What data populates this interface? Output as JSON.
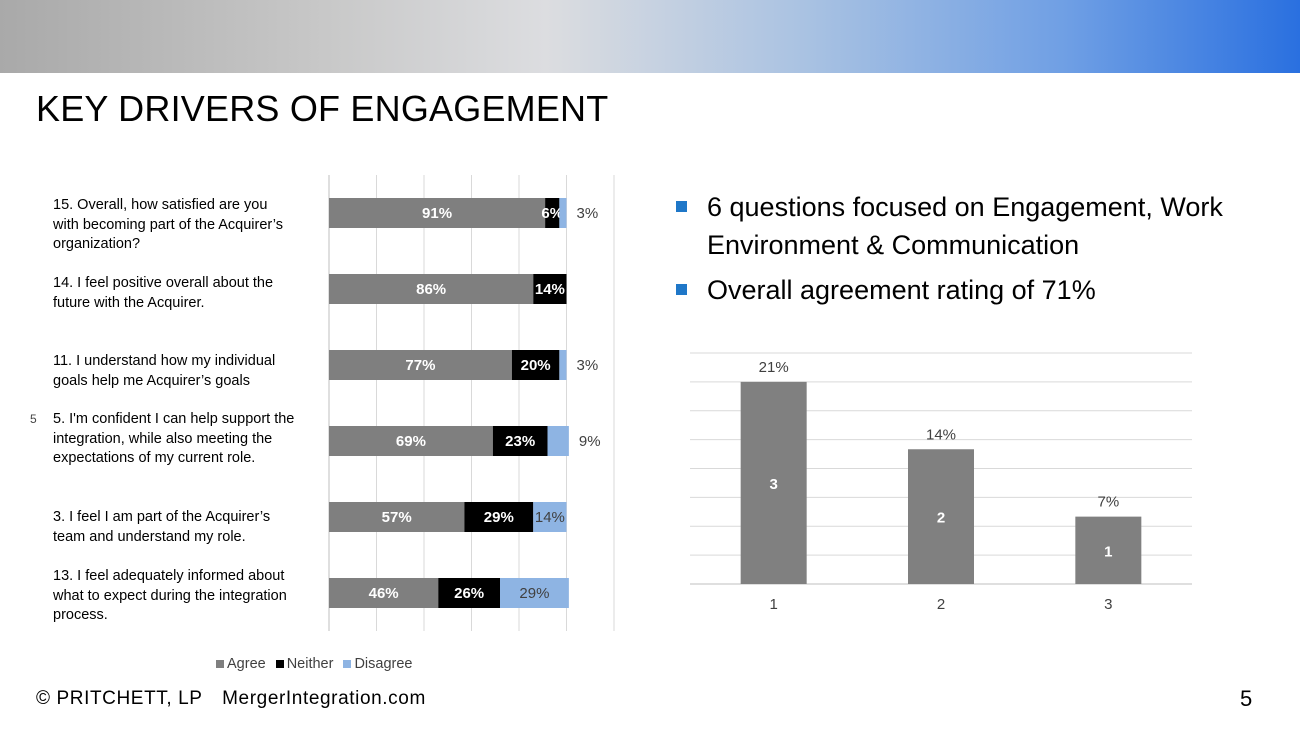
{
  "slide": {
    "title": "KEY DRIVERS OF ENGAGEMENT",
    "footer_left": "© PRITCHETT, LP",
    "footer_site": "MergerIntegration.com",
    "page_number": "5",
    "stray_mark": "5"
  },
  "bullets": [
    "6 questions focused on Engagement, Work Environment & Communication",
    "Overall agreement rating of 71%"
  ],
  "colors": {
    "agree": "#7f7f7f",
    "neither": "#000000",
    "disagree": "#8eb4e3",
    "bullet": "#1f77c8",
    "column": "#808080"
  },
  "chart_data": [
    {
      "type": "bar",
      "orientation": "horizontal",
      "stacked": true,
      "categories": [
        "15. Overall, how satisfied are you with becoming part of the Acquirer’s organization?",
        "14. I feel positive overall about the future with the Acquirer.",
        "11. I understand how my individual goals help me Acquirer’s goals",
        "5. I'm confident I can help support the integration, while also meeting the expectations of my current role.",
        "3. I feel I am part of the Acquirer’s team and understand my role.",
        "13. I feel adequately informed about what to expect during the integration process."
      ],
      "category_lines": [
        [
          "15. Overall, how satisfied are you",
          "with becoming part of the Acquirer’s",
          "organization?"
        ],
        [
          "14. I feel positive overall about the",
          "future with the Acquirer."
        ],
        [
          "11. I understand how my individual",
          "goals help me Acquirer’s goals"
        ],
        [
          "5. I'm confident I can help support the",
          "integration, while also meeting the",
          "expectations of my current role."
        ],
        [
          "3. I feel I am part of the Acquirer’s",
          "team and understand my role."
        ],
        [
          "13. I feel adequately informed about",
          "what to expect during the integration",
          "process."
        ]
      ],
      "series": [
        {
          "name": "Agree",
          "values": [
            91,
            86,
            77,
            69,
            57,
            46
          ],
          "labels": [
            "91%",
            "86%",
            "77%",
            "69%",
            "57%",
            "46%"
          ]
        },
        {
          "name": "Neither",
          "values": [
            6,
            14,
            20,
            23,
            29,
            26
          ],
          "labels": [
            "6%",
            "14%",
            "20%",
            "23%",
            "29%",
            "26%"
          ]
        },
        {
          "name": "Disagree",
          "values": [
            3,
            0,
            3,
            9,
            14,
            29
          ],
          "labels": [
            "3%",
            "",
            "3%",
            "9%",
            "14%",
            "29%"
          ]
        }
      ],
      "xlim": [
        0,
        120
      ],
      "grid": true,
      "legend": "bottom"
    },
    {
      "type": "bar",
      "categories": [
        "1",
        "2",
        "3"
      ],
      "values": [
        21,
        14,
        7
      ],
      "value_labels": [
        "21%",
        "14%",
        "7%"
      ],
      "inner_labels": [
        "3",
        "2",
        "1"
      ],
      "ylim": [
        0,
        24
      ],
      "grid": true
    }
  ]
}
